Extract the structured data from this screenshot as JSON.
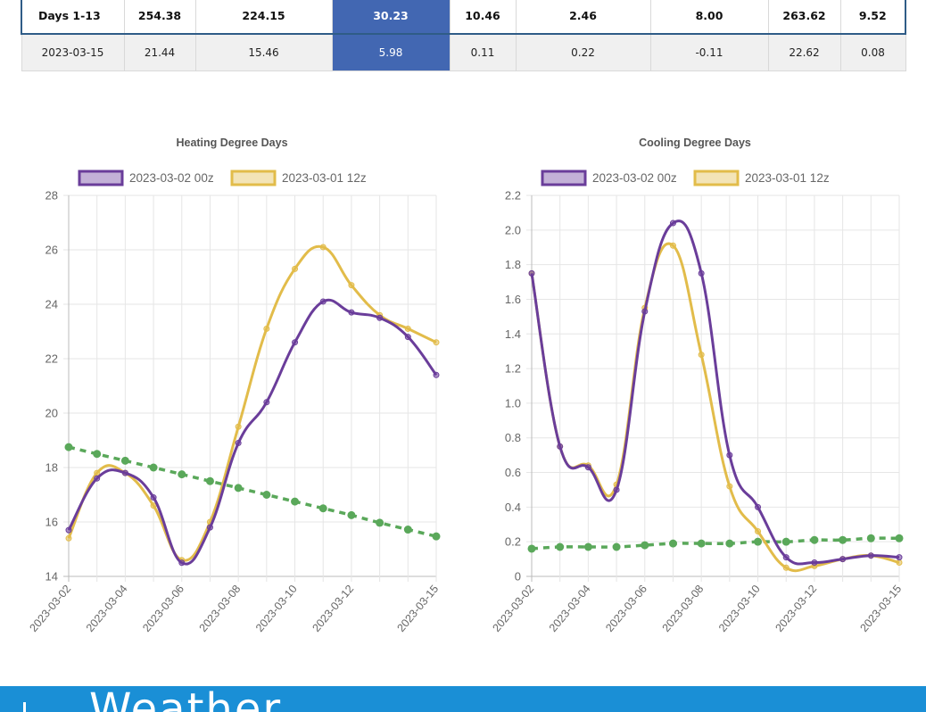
{
  "table": {
    "columns": 9,
    "rows": [
      {
        "cells": [
          "Days 1-13",
          "254.38",
          "224.15",
          "30.23",
          "10.46",
          "2.46",
          "8.00",
          "263.62",
          "9.52"
        ]
      },
      {
        "cells": [
          "2023-03-15",
          "21.44",
          "15.46",
          "5.98",
          "0.11",
          "0.22",
          "-0.11",
          "22.62",
          "0.08"
        ]
      }
    ],
    "highlight_column": 3,
    "highlight_color": "#4267b2"
  },
  "chart_data": [
    {
      "type": "line",
      "title": "Heating Degree Days",
      "x": [
        "2023-03-02",
        "2023-03-03",
        "2023-03-04",
        "2023-03-05",
        "2023-03-06",
        "2023-03-07",
        "2023-03-08",
        "2023-03-09",
        "2023-03-10",
        "2023-03-11",
        "2023-03-12",
        "2023-03-13",
        "2023-03-14",
        "2023-03-15"
      ],
      "x_tick_labels": [
        "2023-03-02",
        "2023-03-04",
        "2023-03-06",
        "2023-03-08",
        "2023-03-10",
        "2023-03-12",
        "2023-03-15"
      ],
      "ylim": [
        14,
        28
      ],
      "y_ticks": [
        "14",
        "16",
        "18",
        "20",
        "22",
        "24",
        "26",
        "28"
      ],
      "legend_position": "top",
      "grid": true,
      "series": [
        {
          "name": "2023-03-02 00z",
          "color": "#6a3d9a",
          "values": [
            15.7,
            17.6,
            17.8,
            16.9,
            14.5,
            15.8,
            18.9,
            20.4,
            22.6,
            24.1,
            23.7,
            23.5,
            22.8,
            21.4
          ]
        },
        {
          "name": "2023-03-01 12z",
          "color": "#e2bc4a",
          "values": [
            15.4,
            17.8,
            17.8,
            16.6,
            14.6,
            16.0,
            19.5,
            23.1,
            25.3,
            26.1,
            24.7,
            23.6,
            23.1,
            22.6
          ]
        },
        {
          "name": "",
          "color": "#5aa85a",
          "dashed": true,
          "values": [
            18.75,
            18.5,
            18.25,
            18.0,
            17.75,
            17.5,
            17.25,
            17.0,
            16.75,
            16.5,
            16.25,
            15.97,
            15.72,
            15.47
          ]
        }
      ]
    },
    {
      "type": "line",
      "title": "Cooling Degree Days",
      "x": [
        "2023-03-02",
        "2023-03-03",
        "2023-03-04",
        "2023-03-05",
        "2023-03-06",
        "2023-03-07",
        "2023-03-08",
        "2023-03-09",
        "2023-03-10",
        "2023-03-11",
        "2023-03-12",
        "2023-03-13",
        "2023-03-14",
        "2023-03-15"
      ],
      "x_tick_labels": [
        "2023-03-02",
        "2023-03-04",
        "2023-03-06",
        "2023-03-08",
        "2023-03-10",
        "2023-03-12",
        "2023-03-15"
      ],
      "ylim": [
        0,
        2.2
      ],
      "y_ticks": [
        "0",
        "0.2",
        "0.4",
        "0.6",
        "0.8",
        "1.0",
        "1.2",
        "1.4",
        "1.6",
        "1.8",
        "2.0",
        "2.2"
      ],
      "legend_position": "top",
      "grid": true,
      "series": [
        {
          "name": "2023-03-02 00z",
          "color": "#6a3d9a",
          "values": [
            1.75,
            0.75,
            0.63,
            0.5,
            1.53,
            2.04,
            1.75,
            0.7,
            0.4,
            0.11,
            0.08,
            0.1,
            0.12,
            0.11
          ]
        },
        {
          "name": "2023-03-01 12z",
          "color": "#e2bc4a",
          "values": [
            1.75,
            0.75,
            0.64,
            0.53,
            1.55,
            1.91,
            1.28,
            0.52,
            0.26,
            0.05,
            0.06,
            0.1,
            0.12,
            0.08
          ]
        },
        {
          "name": "",
          "color": "#5aa85a",
          "dashed": true,
          "values": [
            0.16,
            0.17,
            0.17,
            0.17,
            0.18,
            0.19,
            0.19,
            0.19,
            0.2,
            0.2,
            0.21,
            0.21,
            0.22,
            0.22
          ]
        }
      ]
    }
  ],
  "footer": {
    "brand_text": "Weather",
    "color": "#1a8fd6"
  }
}
